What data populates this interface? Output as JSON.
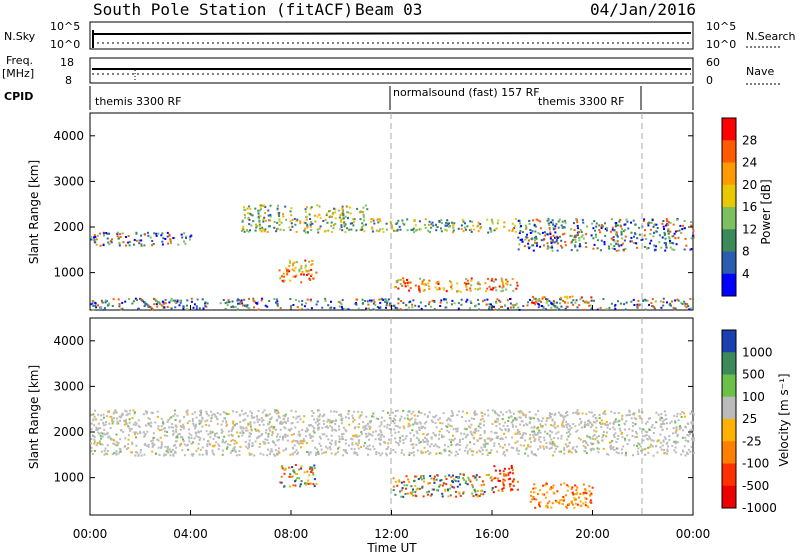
{
  "header": {
    "title": "South Pole Station (fitACF)",
    "beam": "Beam 03",
    "date": "04/Jan/2016"
  },
  "top_panels": {
    "nsky_label": "N.Sky",
    "nsky_ticks": [
      "10^5",
      "10^0"
    ],
    "nsearch_label": "N.Search",
    "nsearch_ticks": [
      "10^5",
      "10^0"
    ],
    "freq_label": "Freq.",
    "freq_unit": "[MHz]",
    "freq_ticks": [
      "18",
      "8"
    ],
    "nave_label": "Nave",
    "nave_ticks": [
      "60",
      "0"
    ],
    "cpid_label": "CPID",
    "cpid_segments": [
      {
        "label": "themis 3300 RF",
        "start_hour": 0
      },
      {
        "label": "normalsound (fast) 157 RF",
        "start_hour": 12
      },
      {
        "label": "themis 3300 RF",
        "start_hour": 22
      }
    ]
  },
  "chart_data": [
    {
      "type": "heatmap",
      "name": "power",
      "ylabel": "Slant Range [km]",
      "ylim": [
        180,
        4500
      ],
      "yticks": [
        1000,
        2000,
        3000,
        4000
      ],
      "xlim_hours": [
        0,
        24
      ],
      "colorbar_label": "Power [dB]",
      "colorbar_ticks": [
        "28",
        "24",
        "20",
        "16",
        "12",
        "8",
        "4"
      ],
      "colorbar_colors": [
        "#ff0000",
        "#ff5a00",
        "#ff9a00",
        "#e8c800",
        "#7cc060",
        "#3a8a5a",
        "#2a5db0",
        "#0000ff"
      ],
      "features": [
        {
          "x": [
            0,
            24
          ],
          "y_km": [
            200,
            450
          ],
          "level": "low",
          "desc": "near range scatter"
        },
        {
          "x": [
            0,
            4
          ],
          "y_km": [
            1600,
            1900
          ],
          "level": "low"
        },
        {
          "x": [
            6,
            11
          ],
          "y_km": [
            1900,
            2500
          ],
          "level": "mid"
        },
        {
          "x": [
            11,
            17
          ],
          "y_km": [
            1900,
            2200
          ],
          "level": "mid"
        },
        {
          "x": [
            17,
            24
          ],
          "y_km": [
            1500,
            2200
          ],
          "level": "low"
        },
        {
          "x": [
            7.5,
            9
          ],
          "y_km": [
            800,
            1300
          ],
          "level": "high"
        },
        {
          "x": [
            12,
            17
          ],
          "y_km": [
            600,
            900
          ],
          "level": "high"
        },
        {
          "x": [
            17.5,
            20
          ],
          "y_km": [
            350,
            500
          ],
          "level": "high"
        }
      ]
    },
    {
      "type": "heatmap",
      "name": "velocity",
      "ylabel": "Slant Range [km]",
      "ylim": [
        180,
        4500
      ],
      "yticks": [
        1000,
        2000,
        3000,
        4000
      ],
      "xlim_hours": [
        0,
        24
      ],
      "xticks": [
        "00:00",
        "04:00",
        "08:00",
        "12:00",
        "16:00",
        "20:00",
        "00:00"
      ],
      "xlabel": "Time UT",
      "colorbar_label": "Velocity [m s⁻¹]",
      "colorbar_ticks": [
        "1000",
        "500",
        "100",
        "25",
        "-25",
        "-100",
        "-500",
        "-1000"
      ],
      "colorbar_colors": [
        "#1a3fb0",
        "#3a8a5a",
        "#6cc04a",
        "#bbbbbb",
        "#ffb000",
        "#ff8000",
        "#ff3000",
        "#ee0000"
      ],
      "features": [
        {
          "x": [
            0,
            24
          ],
          "y_km": [
            1500,
            2500
          ],
          "level": "grey",
          "desc": "ground scatter"
        },
        {
          "x": [
            7.5,
            9
          ],
          "y_km": [
            800,
            1300
          ],
          "level": "mixed"
        },
        {
          "x": [
            12,
            16
          ],
          "y_km": [
            600,
            1100
          ],
          "level": "mixed"
        },
        {
          "x": [
            16,
            17
          ],
          "y_km": [
            700,
            1300
          ],
          "level": "red"
        },
        {
          "x": [
            17.5,
            20
          ],
          "y_km": [
            350,
            900
          ],
          "level": "orange"
        }
      ]
    }
  ],
  "colors": {
    "nsky_line": "#000000",
    "dashed_marker": "#aaaaaa"
  }
}
